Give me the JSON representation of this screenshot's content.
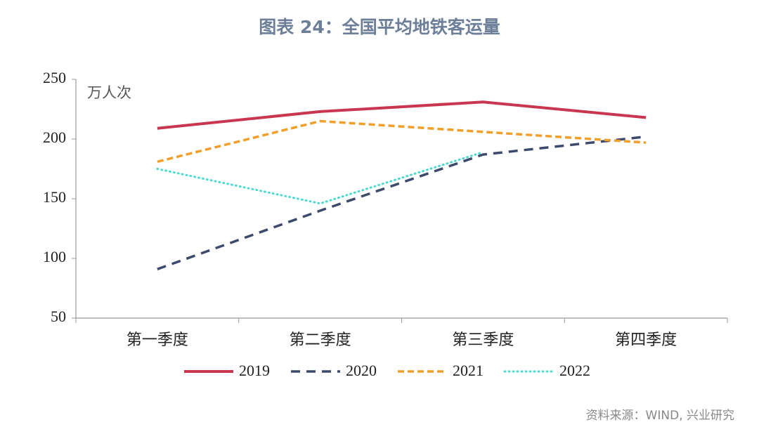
{
  "chart_data": {
    "type": "line",
    "title": "图表 24：全国平均地铁客运量",
    "y_label": "万人次",
    "categories": [
      "第一季度",
      "第二季度",
      "第三季度",
      "第四季度"
    ],
    "series": [
      {
        "name": "2019",
        "color": "#c8374f",
        "values": [
          209,
          223,
          231,
          218
        ]
      },
      {
        "name": "2020",
        "color": "#3e4a6b",
        "values": [
          91,
          140,
          187,
          202
        ]
      },
      {
        "name": "2021",
        "color": "#f0a02a",
        "values": [
          181,
          215,
          206,
          197
        ]
      },
      {
        "name": "2022",
        "color": "#4dd9d0",
        "values": [
          175,
          146,
          189,
          null
        ]
      }
    ],
    "ylim": [
      50,
      250
    ],
    "yticks": [
      50,
      100,
      150,
      200,
      250
    ],
    "grid": false,
    "source": "资料来源：WIND, 兴业研究"
  }
}
